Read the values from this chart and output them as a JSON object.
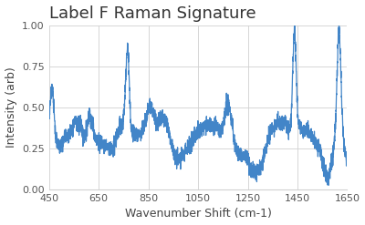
{
  "title": "Label F Raman Signature",
  "xlabel": "Wavenumber Shift (cm-1)",
  "ylabel": "Intensity (arb)",
  "xlim": [
    450,
    1650
  ],
  "ylim": [
    0.0,
    1.0
  ],
  "xticks": [
    450,
    650,
    850,
    1050,
    1250,
    1450,
    1650
  ],
  "yticks": [
    0.0,
    0.25,
    0.5,
    0.75,
    1.0
  ],
  "line_color": "#4285c8",
  "line_width": 0.9,
  "bg_color": "#ffffff",
  "grid_color": "#d0d0d0",
  "title_fontsize": 13,
  "label_fontsize": 9,
  "tick_fontsize": 8
}
